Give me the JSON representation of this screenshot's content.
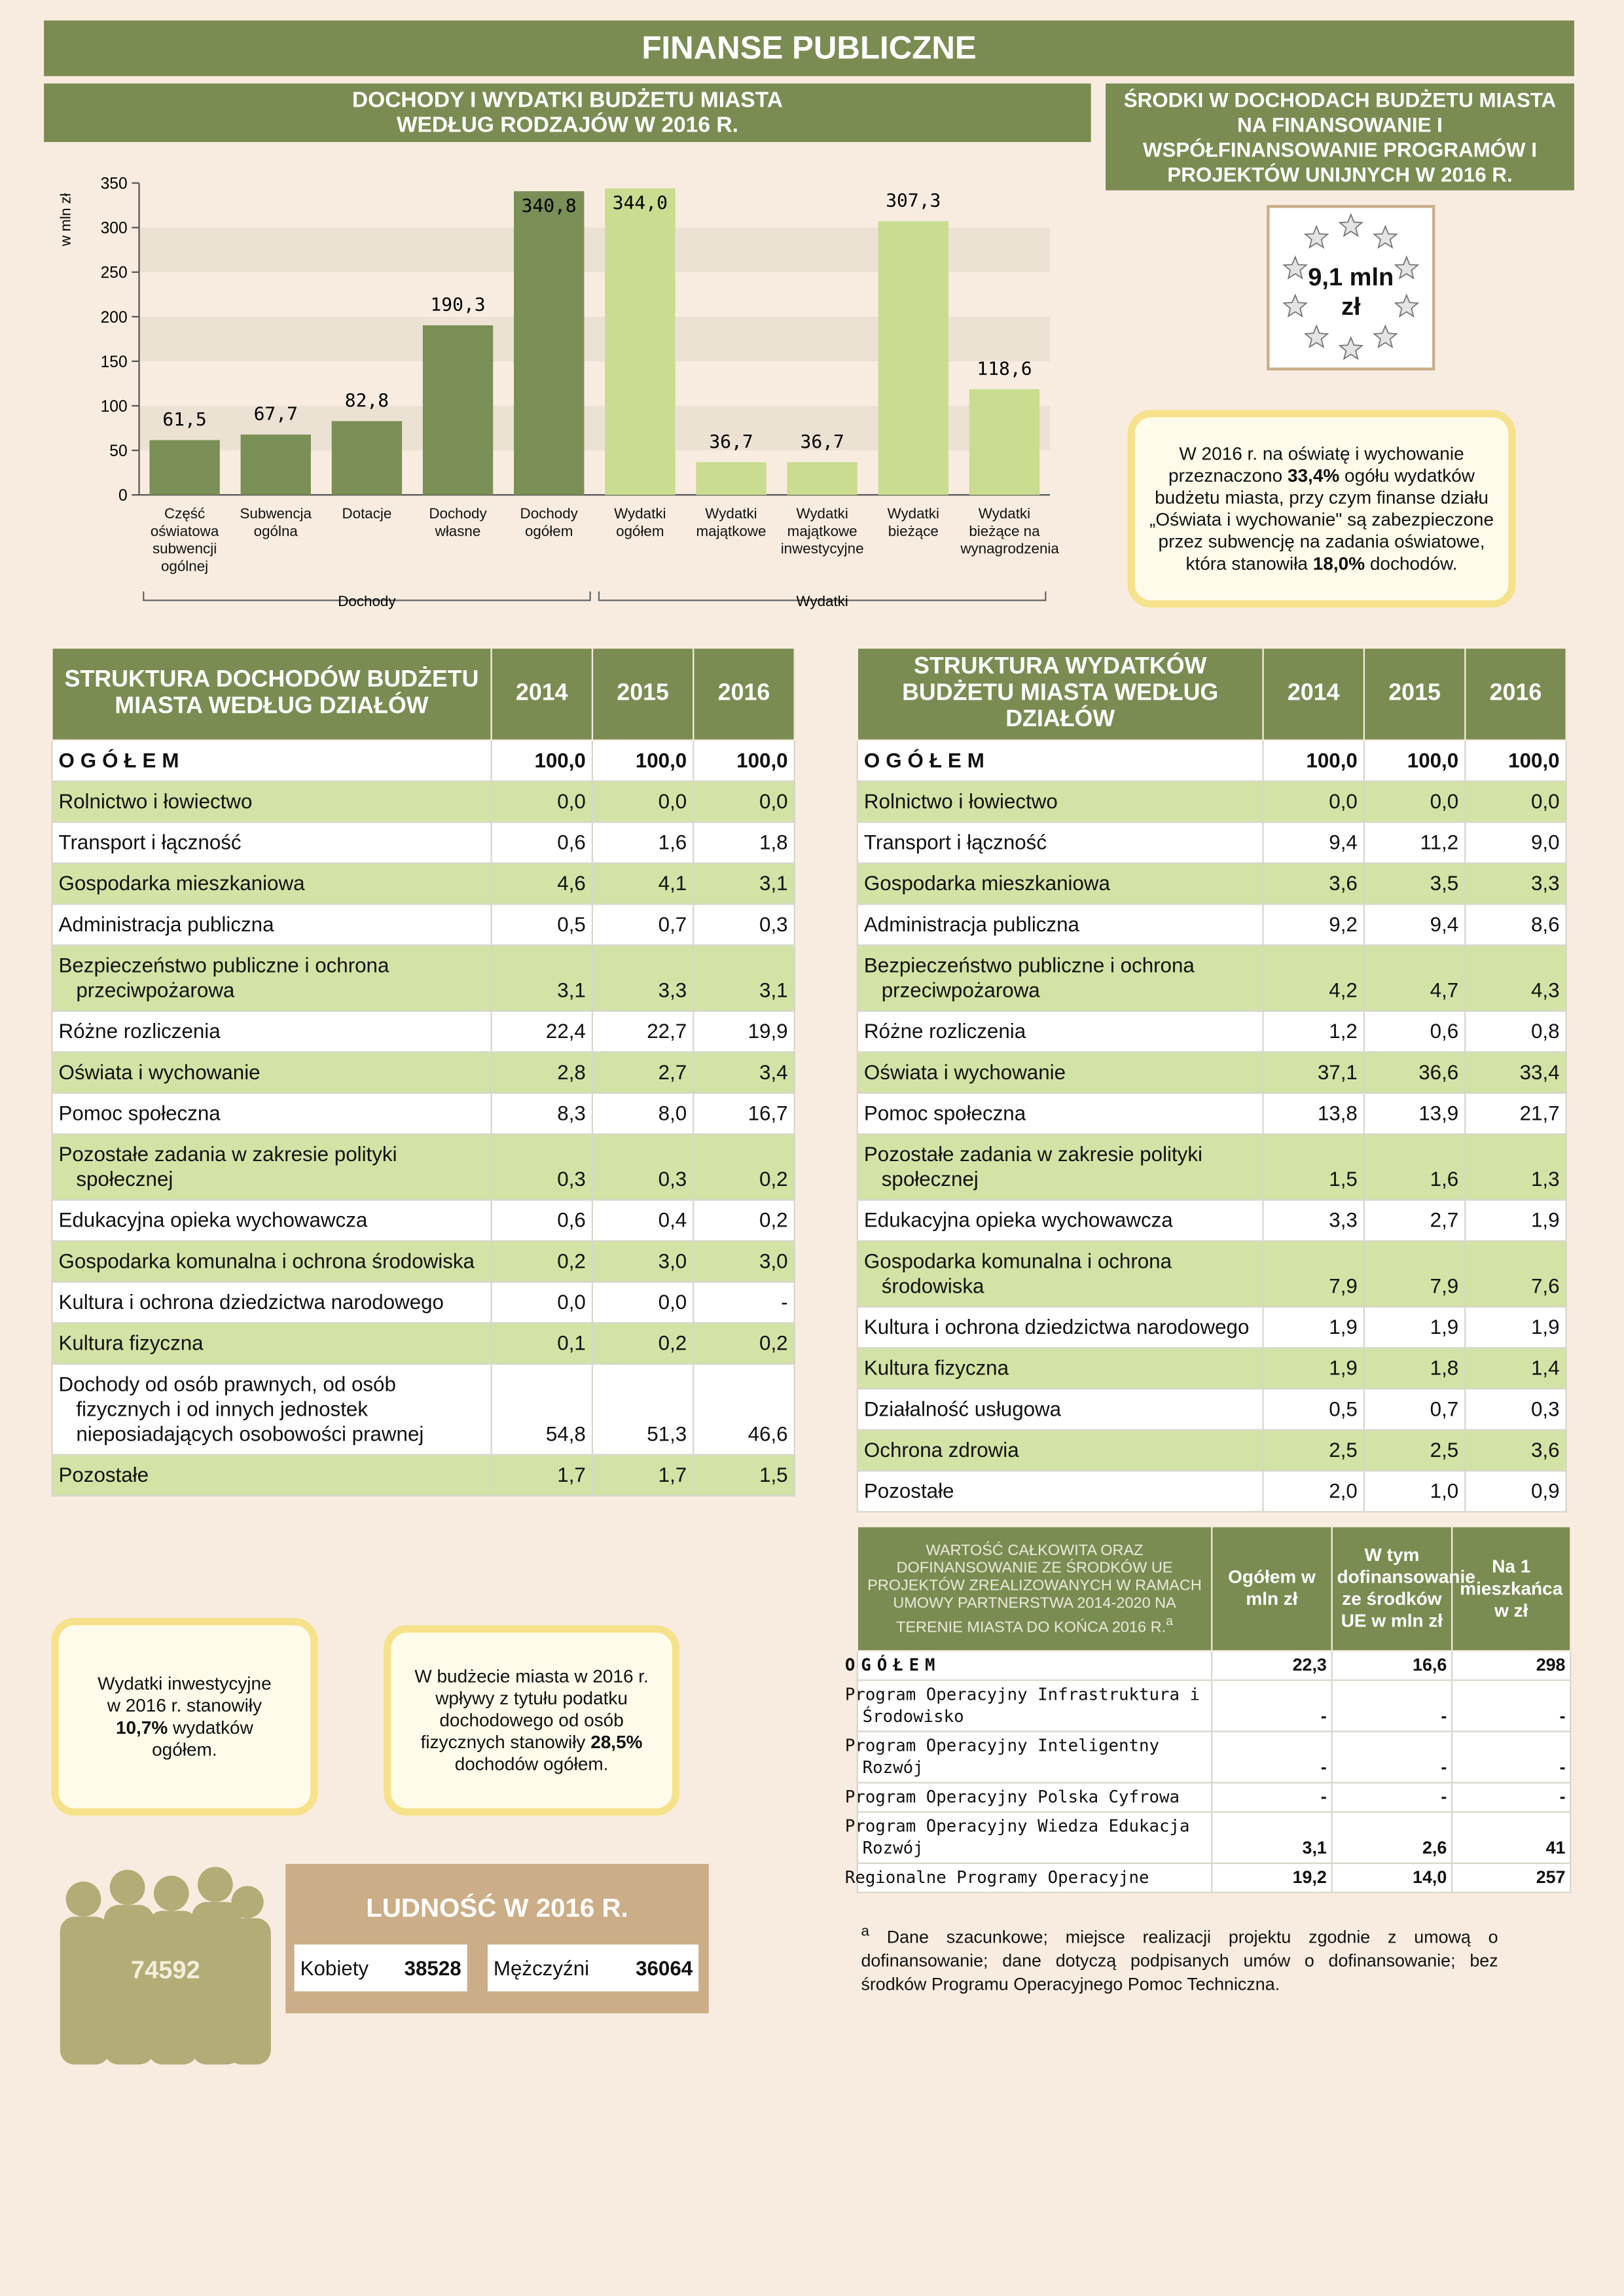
{
  "title": "FINANSE PUBLICZNE",
  "chart_data": {
    "type": "bar",
    "title": "DOCHODY I WYDATKI BUDŻETU MIASTA WEDŁUG RODZAJÓW W 2016 R.",
    "y_label": "w mln zł",
    "categories": [
      "Część oświatowa subwencji ogólnej",
      "Subwencja ogólna",
      "Dotacje",
      "Dochody własne",
      "Dochody ogółem",
      "Wydatki ogółem",
      "Wydatki majątkowe",
      "Wydatki majątkowe inwestycyjne",
      "Wydatki bieżące",
      "Wydatki bieżące na wynagrodzenia"
    ],
    "values": [
      61.5,
      67.7,
      82.8,
      190.3,
      340.8,
      344.0,
      36.7,
      36.7,
      307.3,
      118.6
    ],
    "value_labels": [
      "61,5",
      "67,7",
      "82,8",
      "190,3",
      "340,8",
      "344,0",
      "36,7",
      "36,7",
      "307,3",
      "118,6"
    ],
    "colors": [
      "#7a8f55",
      "#7a8f55",
      "#7a8f55",
      "#7a8f55",
      "#7a8f55",
      "#c9dc8f",
      "#c9dc8f",
      "#c9dc8f",
      "#c9dc8f",
      "#c9dc8f"
    ],
    "groups": [
      {
        "name": "Dochody",
        "size": 5
      },
      {
        "name": "Wydatki",
        "size": 5
      }
    ],
    "ylim": [
      0,
      350
    ],
    "yticks": [
      0,
      50,
      100,
      150,
      200,
      250,
      300,
      350
    ],
    "grid": true
  },
  "eu_funds": {
    "title": "ŚRODKI W DOCHODACH BUDŻETU MIASTA NA FINANSOWANIE I WSPÓŁFINANSOWANIE PROGRAMÓW I PROJEKTÓW UNIJNYCH W 2016 R.",
    "value": "9,1 mln zł"
  },
  "callouts": [
    [
      {
        "text": "W 2016 r. na oświatę i wychowanie przeznaczono "
      },
      {
        "text": "33,4%",
        "bold": true
      },
      {
        "text": " ogółu wydatków budżetu miasta, przy czym finanse działu „Oświata i wychowanie\" są zabezpieczone przez subwencję na zadania oświatowe, która stanowiła "
      },
      {
        "text": "18,0%",
        "bold": true
      },
      {
        "text": " dochodów."
      }
    ],
    [
      {
        "text": "Wydatki inwestycyjne w 2016 r. stanowiły "
      },
      {
        "text": "10,7%",
        "bold": true
      },
      {
        "text": " wydatków ogółem."
      }
    ],
    [
      {
        "text": "W budżecie miasta w 2016 r. wpływy z tytułu podatku dochodowego od osób fizycznych stanowiły "
      },
      {
        "text": "28,5%",
        "bold": true
      },
      {
        "text": " dochodów ogółem."
      }
    ]
  ],
  "income_table": {
    "header": [
      "STRUKTURA DOCHODÓW BUDŻETU MIASTA WEDŁUG DZIAŁÓW",
      "2014",
      "2015",
      "2016"
    ],
    "rows": [
      [
        "OGÓŁEM",
        "100,0",
        "100,0",
        "100,0"
      ],
      [
        "Rolnictwo i łowiectwo",
        "0,0",
        "0,0",
        "0,0"
      ],
      [
        "Transport i łączność",
        "0,6",
        "1,6",
        "1,8"
      ],
      [
        "Gospodarka mieszkaniowa",
        "4,6",
        "4,1",
        "3,1"
      ],
      [
        "Administracja publiczna",
        "0,5",
        "0,7",
        "0,3"
      ],
      [
        "Bezpieczeństwo publiczne i ochrona przeciwpożarowa",
        "3,1",
        "3,3",
        "3,1"
      ],
      [
        "Różne rozliczenia",
        "22,4",
        "22,7",
        "19,9"
      ],
      [
        "Oświata i wychowanie",
        "2,8",
        "2,7",
        "3,4"
      ],
      [
        "Pomoc społeczna",
        "8,3",
        "8,0",
        "16,7"
      ],
      [
        "Pozostałe zadania w zakresie polityki społecznej",
        "0,3",
        "0,3",
        "0,2"
      ],
      [
        "Edukacyjna opieka wychowawcza",
        "0,6",
        "0,4",
        "0,2"
      ],
      [
        "Gospodarka komunalna i ochrona środowiska",
        "0,2",
        "3,0",
        "3,0"
      ],
      [
        "Kultura i ochrona dziedzictwa narodowego",
        "0,0",
        "0,0",
        "-"
      ],
      [
        "Kultura fizyczna",
        "0,1",
        "0,2",
        "0,2"
      ],
      [
        "Dochody od osób prawnych, od osób fizycznych i od innych jednostek nieposiadających osobowości prawnej",
        "54,8",
        "51,3",
        "46,6"
      ],
      [
        "Pozostałe",
        "1,7",
        "1,7",
        "1,5"
      ]
    ]
  },
  "expense_table": {
    "header": [
      "STRUKTURA WYDATKÓW BUDŻETU MIASTA WEDŁUG DZIAŁÓW",
      "2014",
      "2015",
      "2016"
    ],
    "rows": [
      [
        "OGÓŁEM",
        "100,0",
        "100,0",
        "100,0"
      ],
      [
        "Rolnictwo i łowiectwo",
        "0,0",
        "0,0",
        "0,0"
      ],
      [
        "Transport i łączność",
        "9,4",
        "11,2",
        "9,0"
      ],
      [
        "Gospodarka mieszkaniowa",
        "3,6",
        "3,5",
        "3,3"
      ],
      [
        "Administracja publiczna",
        "9,2",
        "9,4",
        "8,6"
      ],
      [
        "Bezpieczeństwo publiczne i ochrona przeciwpożarowa",
        "4,2",
        "4,7",
        "4,3"
      ],
      [
        "Różne rozliczenia",
        "1,2",
        "0,6",
        "0,8"
      ],
      [
        "Oświata i wychowanie",
        "37,1",
        "36,6",
        "33,4"
      ],
      [
        "Pomoc społeczna",
        "13,8",
        "13,9",
        "21,7"
      ],
      [
        "Pozostałe zadania w zakresie polityki społecznej",
        "1,5",
        "1,6",
        "1,3"
      ],
      [
        "Edukacyjna opieka wychowawcza",
        "3,3",
        "2,7",
        "1,9"
      ],
      [
        "Gospodarka komunalna i ochrona środowiska",
        "7,9",
        "7,9",
        "7,6"
      ],
      [
        "Kultura i ochrona dziedzictwa narodowego",
        "1,9",
        "1,9",
        "1,9"
      ],
      [
        "Kultura fizyczna",
        "1,9",
        "1,8",
        "1,4"
      ],
      [
        "Działalność usługowa",
        "0,5",
        "0,7",
        "0,3"
      ],
      [
        "Ochrona zdrowia",
        "2,5",
        "2,5",
        "3,6"
      ],
      [
        "Pozostałe",
        "2,0",
        "1,0",
        "0,9"
      ]
    ]
  },
  "eu_table": {
    "header": [
      "WARTOŚĆ CAŁKOWITA ORAZ DOFINANSOWANIE ZE ŚRODKÓW UE PROJEKTÓW ZREALIZOWANYCH W RAMACH UMOWY PARTNERSTWA 2014-2020 NA TERENIE MIASTA DO KOŃCA 2016 R.",
      "Ogółem w mln zł",
      "W tym dofinansowanie ze środków UE w mln zł",
      "Na 1 mieszkańca w zł"
    ],
    "header_note": "a",
    "rows": [
      [
        "OGÓŁEM",
        "22,3",
        "16,6",
        "298"
      ],
      [
        "Program Operacyjny Infrastruktura i Środowisko",
        "-",
        "-",
        "-"
      ],
      [
        "Program Operacyjny Inteligentny Rozwój",
        "-",
        "-",
        "-"
      ],
      [
        "Program Operacyjny Polska Cyfrowa",
        "-",
        "-",
        "-"
      ],
      [
        "Program Operacyjny Wiedza Edukacja Rozwój",
        "3,1",
        "2,6",
        "41"
      ],
      [
        "Regionalne Programy Operacyjne",
        "19,2",
        "14,0",
        "257"
      ]
    ],
    "footnote_mark": "a",
    "footnote": "Dane szacunkowe; miejsce realizacji projektu zgodnie z umową o dofinansowanie; dane dotyczą podpisanych umów o dofinansowanie; bez środków Programu Operacyjnego Pomoc Techniczna."
  },
  "population": {
    "title": "LUDNOŚĆ W 2016 R.",
    "total": "74592",
    "women_label": "Kobiety",
    "women": "38528",
    "men_label": "Mężczyźni",
    "men": "36064"
  }
}
